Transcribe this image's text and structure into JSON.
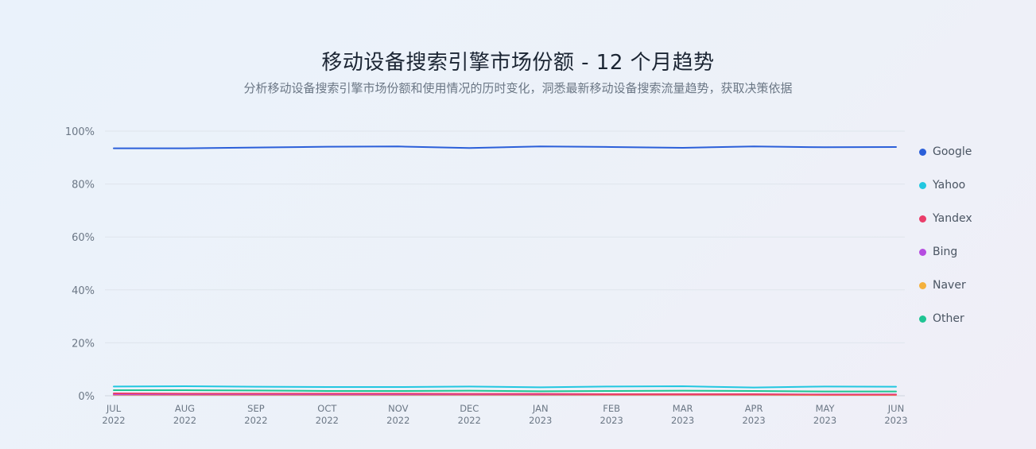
{
  "header": {
    "title": "移动设备搜索引擎市场份额 - 12 个月趋势",
    "subtitle": "分析移动设备搜索引擎市场份额和使用情况的历时变化，洞悉最新移动设备搜索流量趋势，获取决策依据"
  },
  "chart_data": {
    "type": "line",
    "title": "移动设备搜索引擎市场份额 - 12 个月趋势",
    "subtitle": "分析移动设备搜索引擎市场份额和使用情况的历时变化，洞悉最新移动设备搜索流量趋势，获取决策依据",
    "xlabel": "",
    "ylabel": "",
    "ylim": [
      0,
      100
    ],
    "y_ticks": [
      "0%",
      "20%",
      "40%",
      "60%",
      "80%",
      "100%"
    ],
    "y_tick_values": [
      0,
      20,
      40,
      60,
      80,
      100
    ],
    "categories": [
      [
        "JUL",
        "2022"
      ],
      [
        "AUG",
        "2022"
      ],
      [
        "SEP",
        "2022"
      ],
      [
        "OCT",
        "2022"
      ],
      [
        "NOV",
        "2022"
      ],
      [
        "DEC",
        "2022"
      ],
      [
        "JAN",
        "2023"
      ],
      [
        "FEB",
        "2023"
      ],
      [
        "MAR",
        "2023"
      ],
      [
        "APR",
        "2023"
      ],
      [
        "MAY",
        "2023"
      ],
      [
        "JUN",
        "2023"
      ]
    ],
    "grid": true,
    "legend_position": "right",
    "series": [
      {
        "name": "Google",
        "color": "#2b5fd9",
        "values": [
          93.5,
          93.5,
          93.8,
          94.1,
          94.2,
          93.6,
          94.2,
          94.0,
          93.7,
          94.2,
          93.9,
          94.0
        ]
      },
      {
        "name": "Yahoo",
        "color": "#22c7e0",
        "values": [
          3.5,
          3.6,
          3.4,
          3.3,
          3.3,
          3.5,
          3.2,
          3.5,
          3.6,
          3.1,
          3.5,
          3.4
        ]
      },
      {
        "name": "Yandex",
        "color": "#ea3d6a",
        "values": [
          0.9,
          0.8,
          0.8,
          0.8,
          0.8,
          0.7,
          0.7,
          0.6,
          0.6,
          0.6,
          0.4,
          0.4
        ]
      },
      {
        "name": "Bing",
        "color": "#b54ce0",
        "values": [
          0.5,
          0.5,
          0.5,
          0.5,
          0.5,
          0.5,
          0.5,
          0.5,
          0.5,
          0.5,
          0.5,
          0.5
        ]
      },
      {
        "name": "Naver",
        "color": "#f4b13d",
        "values": [
          0.3,
          0.3,
          0.3,
          0.3,
          0.3,
          0.3,
          0.3,
          0.3,
          0.3,
          0.3,
          0.3,
          0.3
        ]
      },
      {
        "name": "Other",
        "color": "#1fc493",
        "values": [
          2.1,
          2.1,
          2.0,
          1.8,
          1.8,
          1.9,
          1.7,
          1.8,
          1.9,
          1.8,
          1.6,
          1.6
        ]
      }
    ]
  }
}
